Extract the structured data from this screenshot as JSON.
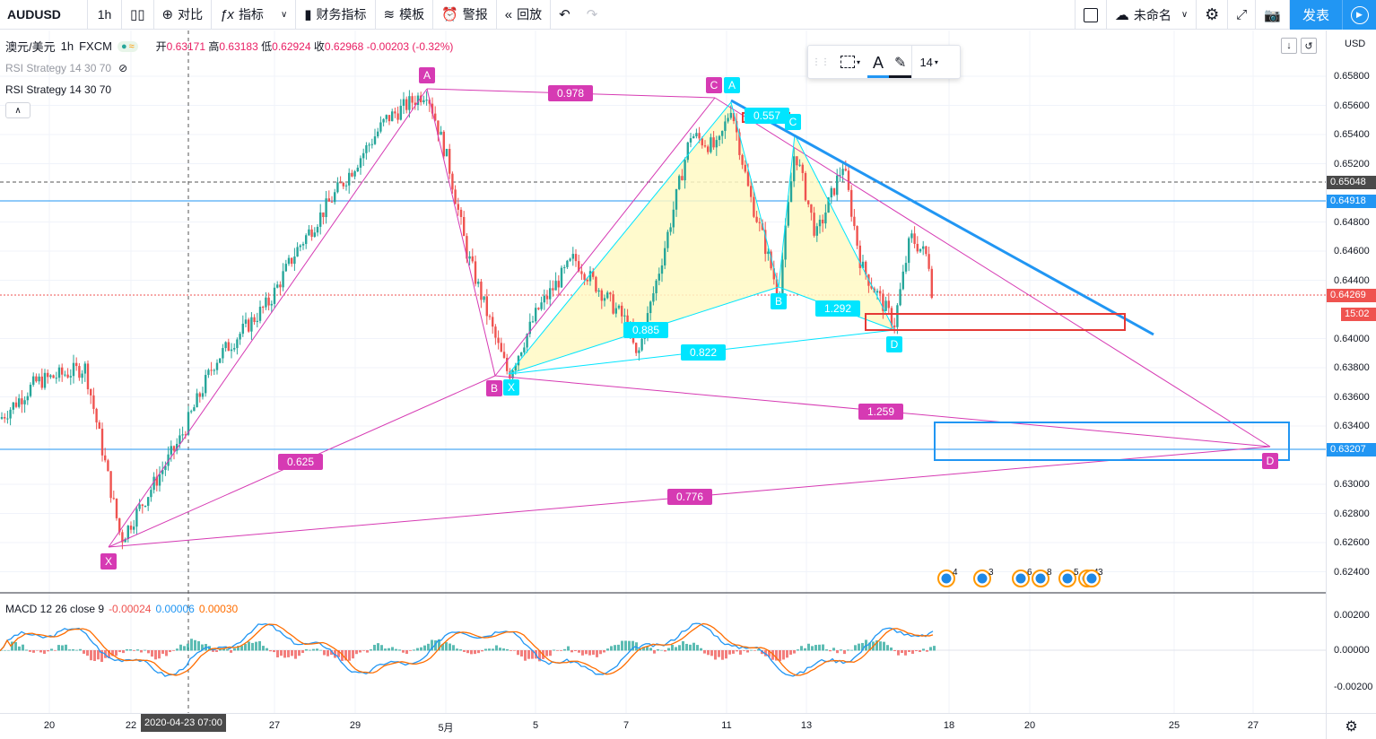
{
  "toolbar": {
    "symbol": "AUDUSD",
    "interval": "1h",
    "compare": "对比",
    "indicators": "指标",
    "financials": "财务指标",
    "templates": "模板",
    "alert": "警报",
    "replay": "回放",
    "layout_name": "未命名",
    "publish": "发表"
  },
  "legend": {
    "pair": "澳元/美元",
    "interval": "1h",
    "exchange": "FXCM",
    "open_label": "开",
    "open": "0.63171",
    "high_label": "高",
    "high": "0.63183",
    "low_label": "低",
    "low": "0.62924",
    "close_label": "收",
    "close": "0.62968",
    "change": "-0.00203 (-0.32%)"
  },
  "studies": {
    "rsi1": "RSI Strategy 14 30 70",
    "rsi2": "RSI Strategy 14 30 70"
  },
  "macd": {
    "label": "MACD 12 26 close 9",
    "v1": "-0.00024",
    "v2": "0.00006",
    "v3": "0.00030"
  },
  "draw_toolbar": {
    "font_size": "14"
  },
  "price_axis": {
    "currency": "USD",
    "ticks": [
      "0.65800",
      "0.65600",
      "0.65400",
      "0.65200",
      "0.64800",
      "0.64600",
      "0.64400",
      "0.64000",
      "0.63800",
      "0.63600",
      "0.63400",
      "0.63000",
      "0.62800",
      "0.62600",
      "0.62400"
    ],
    "macd_ticks": [
      "0.00200",
      "0.00000",
      "-0.00200"
    ],
    "tag_dark": "0.65048",
    "tag_blue1": "0.64918",
    "tag_red": "0.64269",
    "tag_countdown": "15:02",
    "tag_blue2": "0.63207"
  },
  "time_axis": {
    "ticks": [
      "20",
      "22",
      "27",
      "29",
      "5月",
      "5",
      "7",
      "11",
      "13",
      "18",
      "20",
      "25",
      "27"
    ],
    "crosshair": "2020-04-23   07:00"
  },
  "pattern_labels": {
    "X": "X",
    "A": "A",
    "B": "B",
    "C": "C",
    "D": "D",
    "r1": "0.978",
    "r2": "0.625",
    "r3": "1.259",
    "r4": "0.776",
    "c_A": "A",
    "c_X": "X",
    "c_B": "B",
    "c_C": "C",
    "c_D": "D",
    "c_r1": "0.557",
    "c_r2": "0.885",
    "c_r3": "0.822",
    "c_r4": "1.292"
  },
  "events": [
    "4",
    "3",
    "6",
    "8",
    "5",
    "4",
    "3"
  ],
  "colors": {
    "accent": "#2196f3",
    "up": "#26a69a",
    "down": "#ef5350",
    "pattern": "#d63ab3",
    "pattern_fill": "#fff9c4",
    "cyan": "#00e5ff"
  }
}
